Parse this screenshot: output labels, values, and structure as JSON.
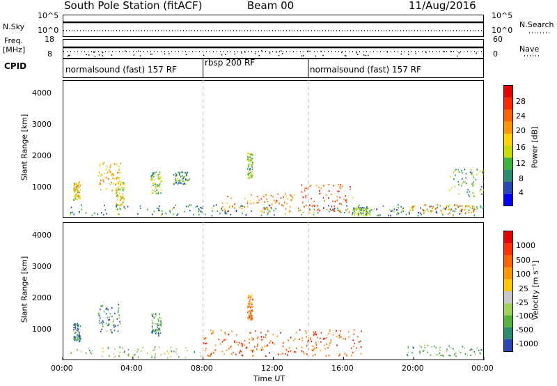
{
  "header": {
    "station": "South Pole Station (fitACF)",
    "beam": "Beam 00",
    "date": "11/Aug/2016"
  },
  "top_panels": {
    "nsky_label": "N.Sky",
    "nsky_ticks": [
      "10^5",
      "10^0"
    ],
    "nsearch_label": "N.Search",
    "nsearch_ticks": [
      "10^5",
      "10^0"
    ],
    "freq_label_1": "Freq.",
    "freq_label_2": "[MHz]",
    "freq_ticks": [
      "18",
      "8"
    ],
    "nave_label": "Nave",
    "nave_ticks": [
      "60",
      "0"
    ],
    "cpid_label": "CPID"
  },
  "cpid_segments": [
    {
      "label": "normalsound (fast) 157 RF",
      "start_hour": 0,
      "end_hour": 8
    },
    {
      "label": "rbsp 200 RF",
      "start_hour": 8,
      "end_hour": 14
    },
    {
      "label": "normalsound (fast) 157 RF",
      "start_hour": 14,
      "end_hour": 24
    }
  ],
  "x_axis": {
    "label": "Time UT",
    "ticks": [
      "00:00",
      "04:00",
      "08:00",
      "12:00",
      "16:00",
      "20:00",
      "00:00"
    ]
  },
  "power_panel": {
    "ylabel": "Slant Range [km]",
    "yticks": [
      "4000",
      "3000",
      "2000",
      "1000"
    ],
    "colorbar_label": "Power [dB]",
    "colorbar_ticks": [
      "28",
      "24",
      "20",
      "16",
      "12",
      "8",
      "4"
    ],
    "colorbar_colors": [
      "#0000ff",
      "#2848b4",
      "#2b8c6e",
      "#3cb43c",
      "#c8dc00",
      "#ffd200",
      "#ff9600",
      "#ff6400",
      "#ff2800",
      "#e60000"
    ]
  },
  "velocity_panel": {
    "ylabel": "Slant Range [km]",
    "yticks": [
      "4000",
      "3000",
      "2000",
      "1000"
    ],
    "colorbar_label": "Velocity [m s⁻¹]",
    "colorbar_ticks": [
      "1000",
      "500",
      "100",
      "25",
      "-25",
      "-100",
      "-500",
      "-1000"
    ],
    "colorbar_colors": [
      "#2846b4",
      "#2b8c6e",
      "#55b43c",
      "#9ed25a",
      "#c8c8c8",
      "#ffc800",
      "#ff9600",
      "#ff6400",
      "#ff3200",
      "#e60000"
    ]
  },
  "chart_data": [
    {
      "type": "heatmap",
      "quantity": "Power [dB]",
      "x_range_hours": [
        0,
        24
      ],
      "y_range_km": [
        200,
        4600
      ],
      "clusters": [
        {
          "t0": 0.3,
          "t1": 24.0,
          "r0": 300,
          "r1": 650,
          "level": 0.25
        },
        {
          "t0": 0.6,
          "t1": 1.0,
          "r0": 800,
          "r1": 1400,
          "level": 0.55
        },
        {
          "t0": 2.0,
          "t1": 3.3,
          "r0": 1100,
          "r1": 2000,
          "level": 0.6
        },
        {
          "t0": 3.0,
          "t1": 3.5,
          "r0": 600,
          "r1": 1400,
          "level": 0.5
        },
        {
          "t0": 5.0,
          "t1": 5.6,
          "r0": 1000,
          "r1": 1700,
          "level": 0.4
        },
        {
          "t0": 6.3,
          "t1": 7.2,
          "r0": 1300,
          "r1": 1700,
          "level": 0.3
        },
        {
          "t0": 10.5,
          "t1": 10.8,
          "r0": 1500,
          "r1": 2300,
          "level": 0.4
        },
        {
          "t0": 9.0,
          "t1": 13.5,
          "r0": 400,
          "r1": 1000,
          "level": 0.7
        },
        {
          "t0": 13.5,
          "t1": 16.5,
          "r0": 400,
          "r1": 1300,
          "level": 0.75
        },
        {
          "t0": 16.5,
          "t1": 17.5,
          "r0": 300,
          "r1": 550,
          "level": 0.4
        },
        {
          "t0": 19.5,
          "t1": 23.5,
          "r0": 350,
          "r1": 650,
          "level": 0.65
        },
        {
          "t0": 22.0,
          "t1": 24.0,
          "r0": 900,
          "r1": 1800,
          "level": 0.35
        }
      ]
    },
    {
      "type": "heatmap",
      "quantity": "Velocity [m s-1]",
      "x_range_hours": [
        0,
        24
      ],
      "y_range_km": [
        200,
        4600
      ],
      "clusters": [
        {
          "t0": 0.3,
          "t1": 8.0,
          "r0": 300,
          "r1": 650,
          "level": 0.35
        },
        {
          "t0": 0.6,
          "t1": 1.0,
          "r0": 800,
          "r1": 1400,
          "level": 0.12
        },
        {
          "t0": 2.0,
          "t1": 3.3,
          "r0": 1100,
          "r1": 2000,
          "level": 0.15
        },
        {
          "t0": 5.0,
          "t1": 5.6,
          "r0": 1000,
          "r1": 1700,
          "level": 0.2
        },
        {
          "t0": 10.5,
          "t1": 10.8,
          "r0": 1500,
          "r1": 2300,
          "level": 0.7
        },
        {
          "t0": 8.0,
          "t1": 17.0,
          "r0": 350,
          "r1": 1200,
          "level": 0.78
        },
        {
          "t0": 19.5,
          "t1": 24.0,
          "r0": 350,
          "r1": 700,
          "level": 0.25
        }
      ]
    }
  ]
}
